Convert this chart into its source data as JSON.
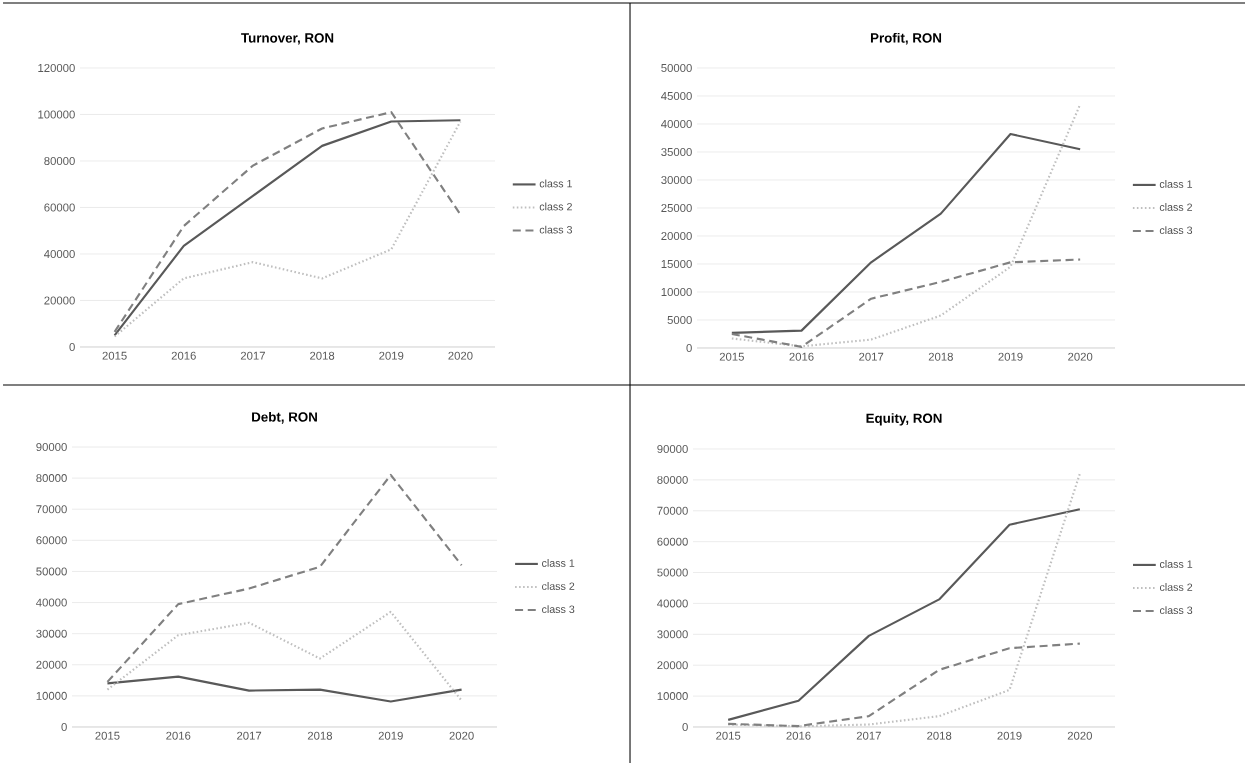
{
  "chart_data": [
    {
      "type": "line",
      "title": "Turnover, RON",
      "categories": [
        "2015",
        "2016",
        "2017",
        "2018",
        "2019",
        "2020"
      ],
      "ylim": [
        0,
        120000
      ],
      "yticks": [
        0,
        20000,
        40000,
        60000,
        80000,
        100000,
        120000
      ],
      "grid": "y",
      "legend": "right",
      "marker": "none",
      "series": [
        {
          "name": "class 1",
          "color": "#595959",
          "line_style": "solid",
          "values": [
            5000,
            43500,
            65000,
            86500,
            97000,
            97500
          ]
        },
        {
          "name": "class 2",
          "color": "#bfbfbf",
          "line_style": "dotted",
          "values": [
            4500,
            29500,
            36500,
            29500,
            42000,
            97000
          ]
        },
        {
          "name": "class 3",
          "color": "#808080",
          "line_style": "dashed",
          "values": [
            6500,
            52000,
            78000,
            94000,
            101000,
            57000
          ]
        }
      ]
    },
    {
      "type": "line",
      "title": "Profit, RON",
      "categories": [
        "2015",
        "2016",
        "2017",
        "2018",
        "2019",
        "2020"
      ],
      "ylim": [
        0,
        50000
      ],
      "yticks": [
        0,
        5000,
        10000,
        15000,
        20000,
        25000,
        30000,
        35000,
        40000,
        45000,
        50000
      ],
      "grid": "y",
      "legend": "right",
      "marker": "none",
      "series": [
        {
          "name": "class 1",
          "color": "#595959",
          "line_style": "solid",
          "values": [
            2700,
            3100,
            15300,
            24000,
            38200,
            35500
          ]
        },
        {
          "name": "class 2",
          "color": "#bfbfbf",
          "line_style": "dotted",
          "values": [
            1700,
            300,
            1500,
            5800,
            14500,
            43500
          ]
        },
        {
          "name": "class 3",
          "color": "#808080",
          "line_style": "dashed",
          "values": [
            2500,
            200,
            8800,
            11800,
            15300,
            15800
          ]
        }
      ]
    },
    {
      "type": "line",
      "title": "Debt, RON",
      "categories": [
        "2015",
        "2016",
        "2017",
        "2018",
        "2019",
        "2020"
      ],
      "ylim": [
        0,
        90000
      ],
      "yticks": [
        0,
        10000,
        20000,
        30000,
        40000,
        50000,
        60000,
        70000,
        80000,
        90000
      ],
      "grid": "y",
      "legend": "right",
      "marker": "none",
      "series": [
        {
          "name": "class 1",
          "color": "#595959",
          "line_style": "solid",
          "values": [
            14000,
            16200,
            11700,
            12000,
            8200,
            12000
          ]
        },
        {
          "name": "class 2",
          "color": "#bfbfbf",
          "line_style": "dotted",
          "values": [
            12000,
            29500,
            33500,
            22000,
            37000,
            8500
          ]
        },
        {
          "name": "class 3",
          "color": "#808080",
          "line_style": "dashed",
          "values": [
            14500,
            39500,
            44500,
            51500,
            81000,
            52000
          ]
        }
      ]
    },
    {
      "type": "line",
      "title": "Equity, RON",
      "categories": [
        "2015",
        "2016",
        "2017",
        "2018",
        "2019",
        "2020"
      ],
      "ylim": [
        0,
        90000
      ],
      "yticks": [
        0,
        10000,
        20000,
        30000,
        40000,
        50000,
        60000,
        70000,
        80000,
        90000
      ],
      "grid": "y",
      "legend": "right",
      "marker": "none",
      "series": [
        {
          "name": "class 1",
          "color": "#595959",
          "line_style": "solid",
          "values": [
            2300,
            8500,
            29500,
            41300,
            65500,
            70500
          ]
        },
        {
          "name": "class 2",
          "color": "#bfbfbf",
          "line_style": "dotted",
          "values": [
            800,
            200,
            800,
            3500,
            12000,
            82000
          ]
        },
        {
          "name": "class 3",
          "color": "#808080",
          "line_style": "dashed",
          "values": [
            1000,
            300,
            3500,
            18500,
            25500,
            27000
          ]
        }
      ]
    }
  ]
}
